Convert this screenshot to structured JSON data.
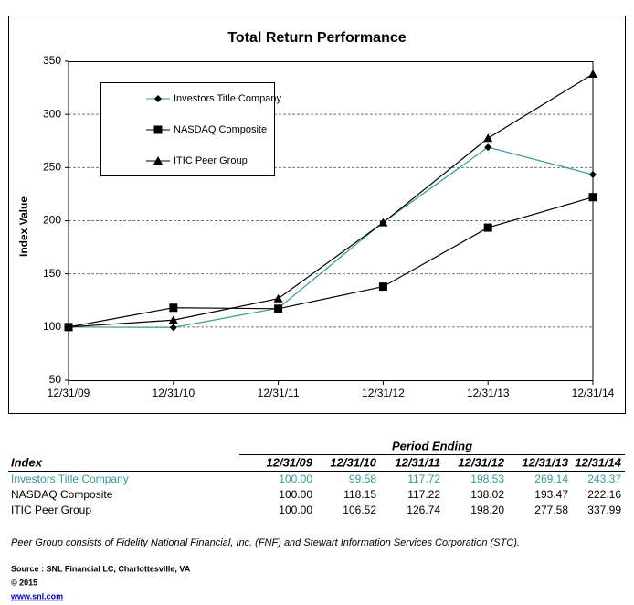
{
  "chart_data": {
    "type": "line",
    "title": "Total Return Performance",
    "y_label": "Index Value",
    "categories": [
      "12/31/09",
      "12/31/10",
      "12/31/11",
      "12/31/12",
      "12/31/13",
      "12/31/14"
    ],
    "series": [
      {
        "name": "Investors Title Company",
        "color": "#339999",
        "marker": "diamond",
        "values": [
          100,
          99.58,
          117.72,
          198.53,
          269.14,
          243.37
        ]
      },
      {
        "name": "NASDAQ Composite",
        "color": "#000000",
        "marker": "square",
        "values": [
          100,
          118.15,
          117.22,
          138.02,
          193.47,
          222.16
        ]
      },
      {
        "name": "ITIC Peer Group",
        "color": "#000000",
        "marker": "triangle",
        "values": [
          100,
          106.52,
          126.74,
          198.2,
          277.58,
          337.99
        ]
      }
    ],
    "ylim": [
      50,
      350
    ],
    "yticks": [
      50,
      100,
      150,
      200,
      250,
      300,
      350
    ],
    "grid": true,
    "legend": "upper left"
  },
  "table": {
    "caption": "Period Ending",
    "header": [
      "Index",
      "12/31/09",
      "12/31/10",
      "12/31/11",
      "12/31/12",
      "12/31/13",
      "12/31/14"
    ],
    "rows": [
      [
        "Investors Title Company",
        "100.00",
        "99.58",
        "117.72",
        "198.53",
        "269.14",
        "243.37"
      ],
      [
        "NASDAQ Composite",
        "100.00",
        "118.15",
        "117.22",
        "138.02",
        "193.47",
        "222.16"
      ],
      [
        "ITIC Peer Group",
        "100.00",
        "106.52",
        "126.74",
        "198.20",
        "277.58",
        "337.99"
      ]
    ]
  },
  "notes": {
    "peer_group": "Peer Group consists of Fidelity National Financial, Inc. (FNF) and Stewart Information Services Corporation (STC).",
    "source": "Source : SNL Financial LC, Charlottesville, VA",
    "copyright": "© 2015",
    "url": "www.snl.com"
  }
}
